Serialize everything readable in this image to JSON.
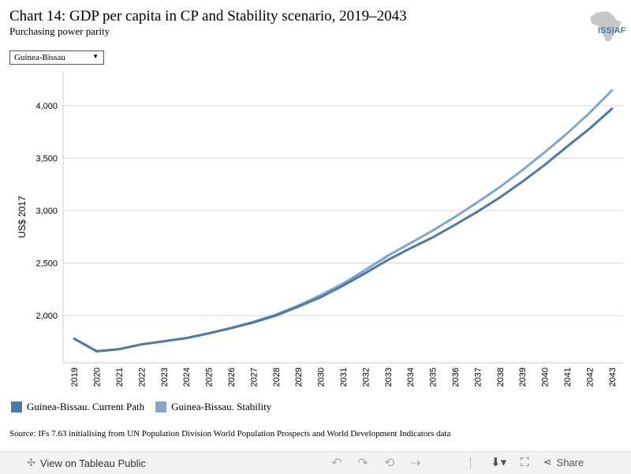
{
  "header": {
    "title": "Chart 14: GDP per capita in CP and Stability scenario, 2019–2043",
    "subtitle": "Purchasing power parity",
    "logo_text": "ISS|AF"
  },
  "filter": {
    "selected": "Guinea-Bissau"
  },
  "chart_data": {
    "type": "line",
    "title": "Chart 14: GDP per capita in CP and Stability scenario, 2019–2043",
    "subtitle": "Purchasing power parity",
    "ylabel": "US$ 2017",
    "xlabel": "",
    "ylim": [
      1550,
      4330
    ],
    "yticks": [
      2000,
      2500,
      3000,
      3500,
      4000
    ],
    "ytick_labels": [
      "2,000",
      "2,500",
      "3,000",
      "3,500",
      "4,000"
    ],
    "grid": true,
    "legend_position": "bottom",
    "x": [
      "2019",
      "2020",
      "2021",
      "2022",
      "2023",
      "2024",
      "2025",
      "2026",
      "2027",
      "2028",
      "2029",
      "2030",
      "2031",
      "2032",
      "2033",
      "2034",
      "2035",
      "2036",
      "2037",
      "2038",
      "2039",
      "2040",
      "2041",
      "2042",
      "2043"
    ],
    "series": [
      {
        "name": "Guinea-Bissau. Current Path",
        "color": "#4e79a7",
        "values": [
          1780,
          1660,
          1680,
          1725,
          1755,
          1785,
          1830,
          1880,
          1935,
          2000,
          2085,
          2175,
          2285,
          2405,
          2530,
          2640,
          2745,
          2865,
          2990,
          3125,
          3275,
          3435,
          3610,
          3780,
          3970
        ]
      },
      {
        "name": "Guinea-Bissau. Stability",
        "color": "#7fa6cc",
        "values": [
          1780,
          1660,
          1680,
          1725,
          1755,
          1785,
          1830,
          1882,
          1940,
          2010,
          2095,
          2195,
          2305,
          2435,
          2570,
          2690,
          2810,
          2940,
          3080,
          3225,
          3385,
          3555,
          3735,
          3930,
          4145
        ]
      }
    ]
  },
  "legend": [
    {
      "label": "Guinea-Bissau. Current Path",
      "color": "#4e79a7"
    },
    {
      "label": "Guinea-Bissau. Stability",
      "color": "#7fa6cc"
    }
  ],
  "source": "Source: IFs 7.63 initialising from UN Population Division World Population Prospects and World Development Indicators data",
  "toolbar": {
    "view_label": "View on Tableau Public",
    "share_label": "Share"
  }
}
